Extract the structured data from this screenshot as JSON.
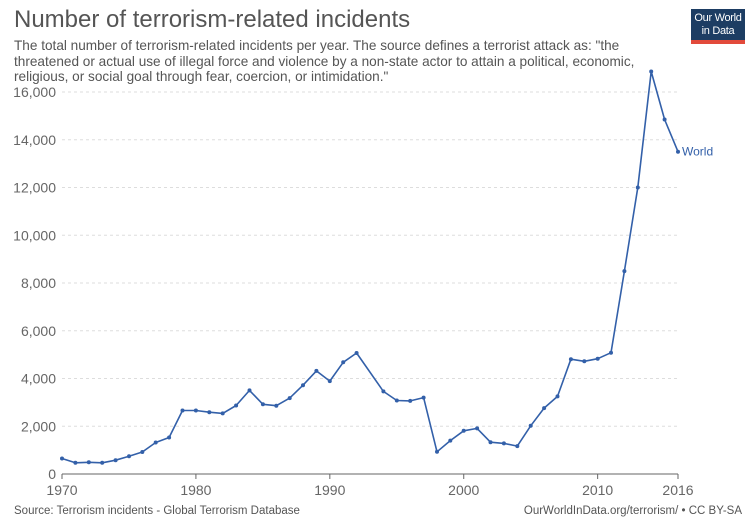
{
  "header": {
    "title": "Number of terrorism-related incidents",
    "subtitle": "The total number of terrorism-related incidents per year. The source defines a terrorist attack as: \"the threatened or actual use of illegal force and violence by a non-state actor to attain a political, economic, religious, or social goal through fear, coercion, or intimidation.\""
  },
  "logo": {
    "line1": "Our World",
    "line2": "in Data"
  },
  "footer": {
    "source": "Source: Terrorism incidents - Global Terrorism Database",
    "credit": "OurWorldInData.org/terrorism/ • CC BY-SA"
  },
  "colors": {
    "series": "#3360a9",
    "grid": "#dddddd",
    "axis": "#666666"
  },
  "chart_data": {
    "type": "line",
    "title": "Number of terrorism-related incidents",
    "xlabel": "",
    "ylabel": "",
    "xlim": [
      1970,
      2016
    ],
    "ylim": [
      0,
      16000
    ],
    "x_ticks": [
      1970,
      1980,
      1990,
      2000,
      2010,
      2016
    ],
    "y_ticks": [
      0,
      2000,
      4000,
      6000,
      8000,
      10000,
      12000,
      14000,
      16000
    ],
    "grid": "horizontal dashed",
    "series": [
      {
        "name": "World",
        "color": "#3360a9",
        "x": [
          1970,
          1971,
          1972,
          1973,
          1974,
          1975,
          1976,
          1977,
          1978,
          1979,
          1980,
          1981,
          1982,
          1983,
          1984,
          1985,
          1986,
          1987,
          1988,
          1989,
          1990,
          1991,
          1992,
          1994,
          1995,
          1996,
          1997,
          1998,
          1999,
          2000,
          2001,
          2002,
          2003,
          2004,
          2005,
          2006,
          2007,
          2008,
          2009,
          2010,
          2011,
          2012,
          2013,
          2014,
          2015,
          2016
        ],
        "values": [
          650,
          470,
          490,
          470,
          580,
          740,
          920,
          1320,
          1530,
          2660,
          2660,
          2590,
          2540,
          2870,
          3500,
          2920,
          2860,
          3180,
          3720,
          4320,
          3890,
          4680,
          5070,
          3460,
          3080,
          3060,
          3200,
          930,
          1400,
          1810,
          1910,
          1330,
          1280,
          1170,
          2020,
          2760,
          3250,
          4810,
          4720,
          4830,
          5080,
          8500,
          12000,
          16860,
          14850,
          13500
        ]
      }
    ]
  }
}
